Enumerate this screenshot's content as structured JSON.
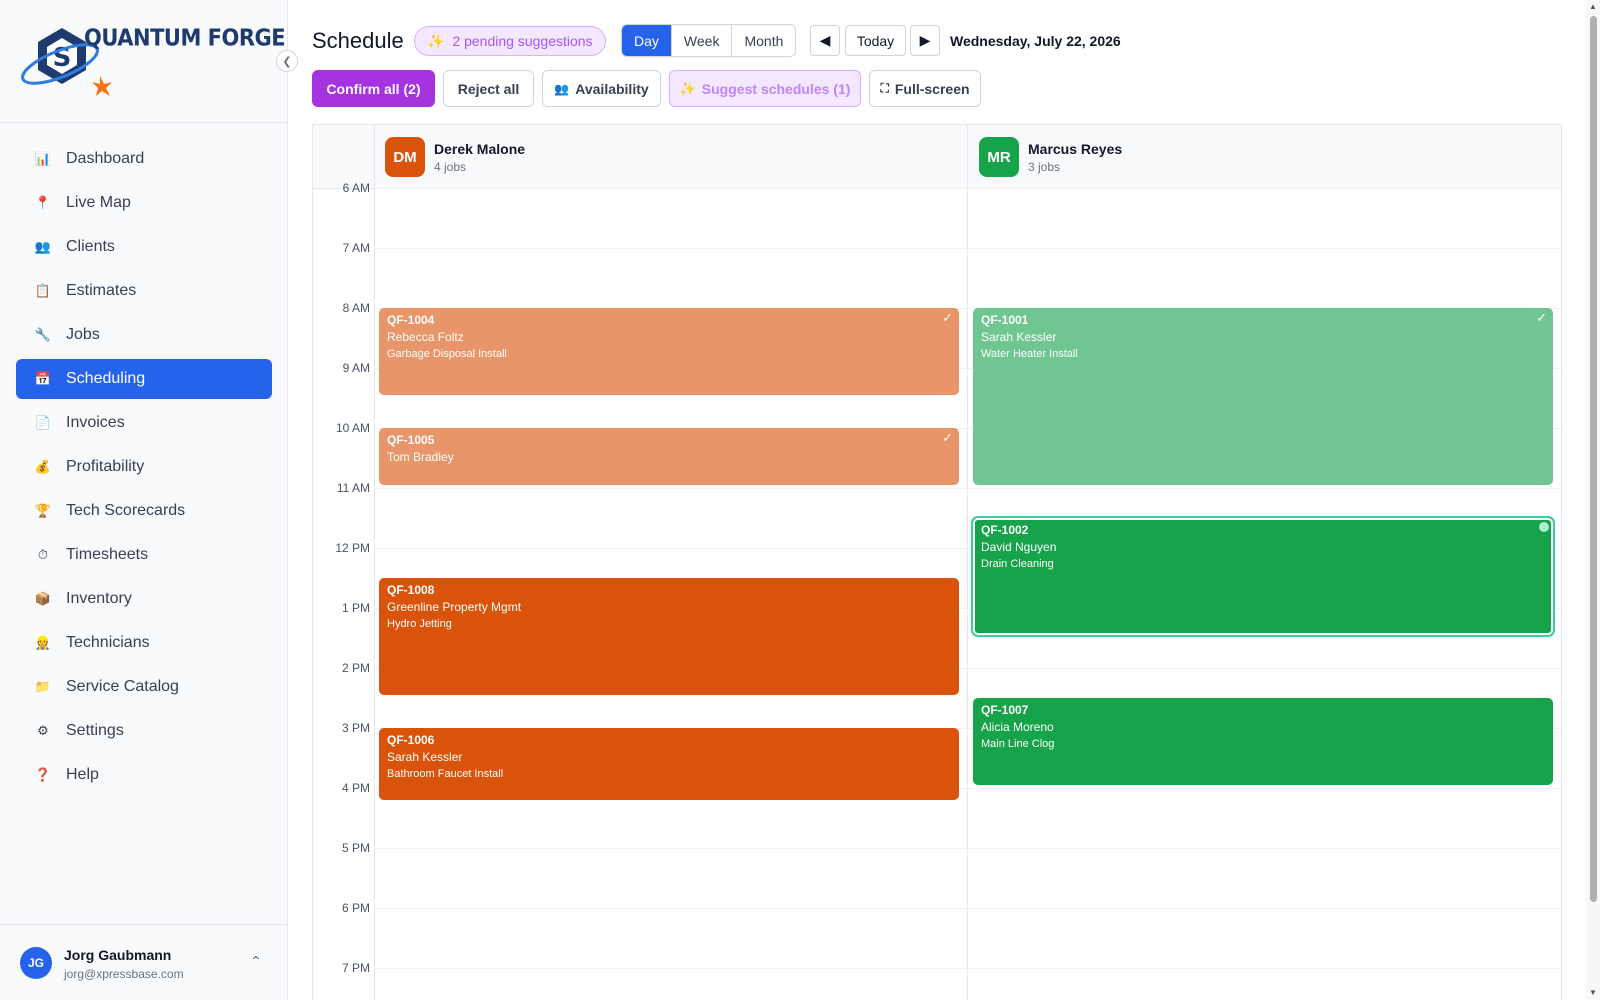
{
  "brand": {
    "name": "QUANTUM FORGE"
  },
  "sidebar": {
    "items": [
      {
        "label": "Dashboard",
        "icon": "chart-icon",
        "glyph": "📊"
      },
      {
        "label": "Live Map",
        "icon": "pin-icon",
        "glyph": "📍"
      },
      {
        "label": "Clients",
        "icon": "users-icon",
        "glyph": "👥"
      },
      {
        "label": "Estimates",
        "icon": "clipboard-icon",
        "glyph": "📋"
      },
      {
        "label": "Jobs",
        "icon": "wrench-icon",
        "glyph": "🔧"
      },
      {
        "label": "Scheduling",
        "icon": "calendar-icon",
        "glyph": "📅",
        "active": true
      },
      {
        "label": "Invoices",
        "icon": "invoice-icon",
        "glyph": "📄"
      },
      {
        "label": "Profitability",
        "icon": "money-bag-icon",
        "glyph": "💰"
      },
      {
        "label": "Tech Scorecards",
        "icon": "trophy-icon",
        "glyph": "🏆"
      },
      {
        "label": "Timesheets",
        "icon": "stopwatch-icon",
        "glyph": "⏱"
      },
      {
        "label": "Inventory",
        "icon": "package-icon",
        "glyph": "📦"
      },
      {
        "label": "Technicians",
        "icon": "technician-icon",
        "glyph": "👷"
      },
      {
        "label": "Service Catalog",
        "icon": "folder-icon",
        "glyph": "📁"
      },
      {
        "label": "Settings",
        "icon": "gear-icon",
        "glyph": "⚙"
      },
      {
        "label": "Help",
        "icon": "question-icon",
        "glyph": "❓"
      }
    ],
    "user": {
      "initials": "JG",
      "name": "Jorg Gaubmann",
      "email": "jorg@xpressbase.com"
    }
  },
  "header": {
    "title": "Schedule",
    "pending": "2 pending suggestions",
    "views": [
      "Day",
      "Week",
      "Month"
    ],
    "active_view": "Day",
    "prev": "◀",
    "today": "Today",
    "next": "▶",
    "date": "Wednesday, July 22, 2026"
  },
  "toolbar": {
    "confirm_all": "Confirm all (2)",
    "reject_all": "Reject all",
    "availability": "Availability",
    "suggest": "Suggest schedules (1)",
    "fullscreen": "Full-screen"
  },
  "calendar": {
    "hours": [
      "6 AM",
      "7 AM",
      "8 AM",
      "9 AM",
      "10 AM",
      "11 AM",
      "12 PM",
      "1 PM",
      "2 PM",
      "3 PM",
      "4 PM",
      "5 PM",
      "6 PM",
      "7 PM"
    ],
    "technicians": [
      {
        "initials": "DM",
        "name": "Derek Malone",
        "jobs": "4 jobs",
        "color": "#d9530b"
      },
      {
        "initials": "MR",
        "name": "Marcus Reyes",
        "jobs": "3 jobs",
        "color": "#16a34a"
      }
    ],
    "events": [
      {
        "tech": 0,
        "id": "QF-1004",
        "client": "Rebecca Foltz",
        "service": "Garbage Disposal Install",
        "start": 8.0,
        "end": 9.45,
        "confirmed": true,
        "color": "#e8956a"
      },
      {
        "tech": 0,
        "id": "QF-1005",
        "client": "Tom Bradley",
        "service": "",
        "start": 10.0,
        "end": 10.95,
        "confirmed": true,
        "color": "#e8956a"
      },
      {
        "tech": 0,
        "id": "QF-1008",
        "client": "Greenline Property Mgmt",
        "service": "Hydro Jetting",
        "start": 12.5,
        "end": 14.45,
        "confirmed": false,
        "color": "#d9530b"
      },
      {
        "tech": 0,
        "id": "QF-1006",
        "client": "Sarah Kessler",
        "service": "Bathroom Faucet Install",
        "start": 15.0,
        "end": 16.2,
        "confirmed": false,
        "color": "#d9530b"
      },
      {
        "tech": 1,
        "id": "QF-1001",
        "client": "Sarah Kessler",
        "service": "Water Heater Install",
        "start": 8.0,
        "end": 10.95,
        "confirmed": true,
        "color": "#6fc690"
      },
      {
        "tech": 1,
        "id": "QF-1002",
        "client": "David Nguyen",
        "service": "Drain Cleaning",
        "start": 11.5,
        "end": 13.45,
        "confirmed": false,
        "selected": true,
        "color": "#16a34a"
      },
      {
        "tech": 1,
        "id": "QF-1007",
        "client": "Alicia Moreno",
        "service": "Main Line Clog",
        "start": 14.5,
        "end": 15.95,
        "confirmed": false,
        "color": "#16a34a"
      }
    ]
  },
  "colors": {
    "accent": "#2563eb",
    "confirm": "#a632e0",
    "suggest_bg": "#f3e8ff"
  }
}
